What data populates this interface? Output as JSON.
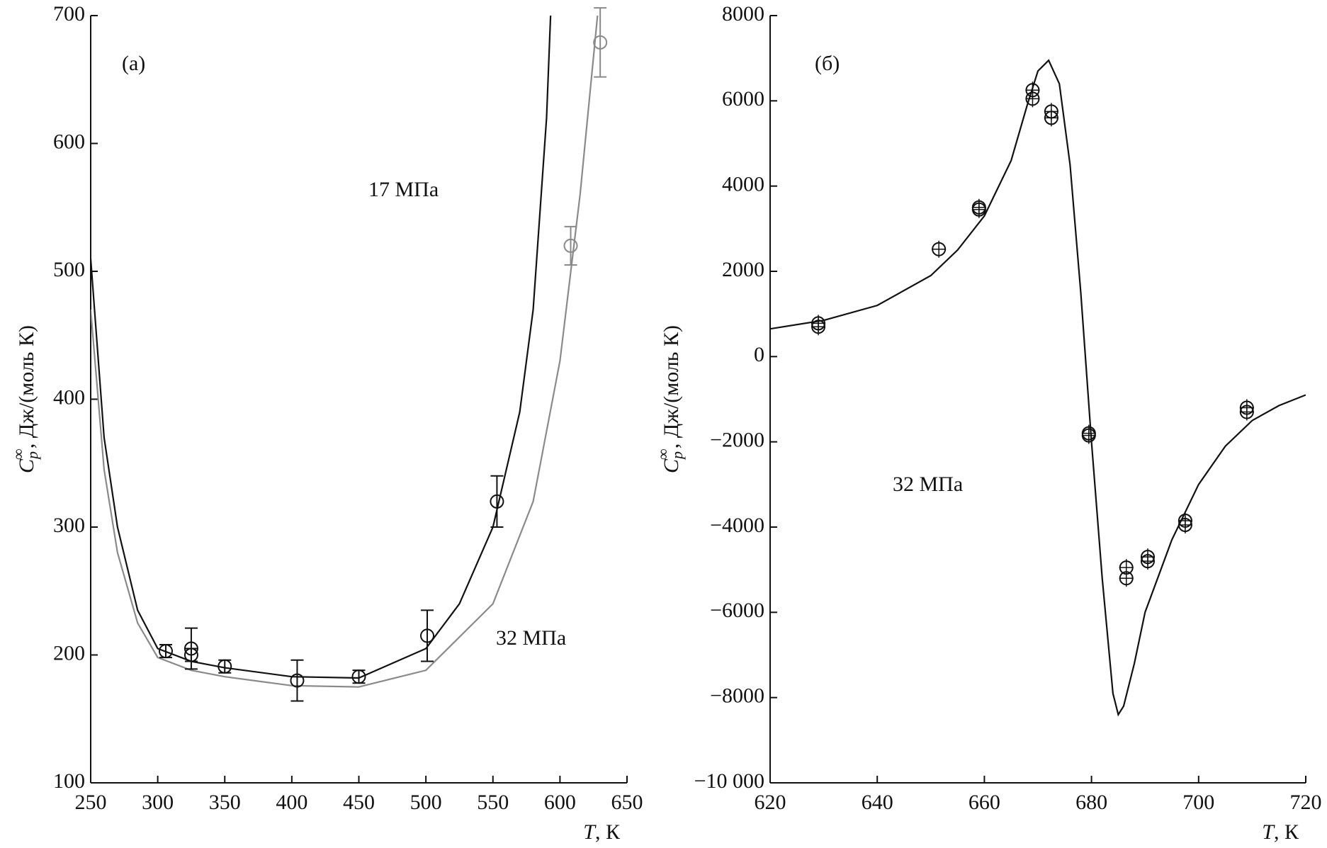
{
  "chart_data": [
    {
      "type": "line",
      "panel": "(а)",
      "xlabel": {
        "symbol": "T",
        "rest": ", К"
      },
      "ylabel": {
        "symbol": "C",
        "sub": "p",
        "sup": "∞",
        "rest": ", Дж/(моль К)"
      },
      "xlim": [
        250,
        650
      ],
      "ylim": [
        100,
        700
      ],
      "xticks": [
        250,
        300,
        350,
        400,
        450,
        500,
        550,
        600,
        650
      ],
      "yticks": [
        100,
        200,
        300,
        400,
        500,
        600,
        700
      ],
      "annotations": [
        "17 МПа",
        "32 МПа"
      ],
      "series": [
        {
          "style": "line",
          "color": "#111111",
          "x": [
            250,
            260,
            270,
            285,
            300,
            325,
            350,
            400,
            450,
            500,
            525,
            550,
            570,
            580,
            590,
            593
          ],
          "values": [
            510,
            370,
            300,
            235,
            205,
            195,
            190,
            183,
            182,
            205,
            240,
            300,
            390,
            470,
            620,
            700
          ]
        },
        {
          "style": "line",
          "color": "#8a8a8a",
          "x": [
            250,
            260,
            270,
            285,
            300,
            325,
            350,
            400,
            450,
            500,
            550,
            580,
            600,
            615,
            628
          ],
          "values": [
            470,
            345,
            280,
            225,
            198,
            188,
            183,
            176,
            175,
            188,
            240,
            320,
            430,
            560,
            700
          ]
        },
        {
          "style": "points",
          "color": "#111111",
          "x": [
            306,
            325,
            325,
            350,
            404,
            450,
            501,
            553
          ],
          "values": [
            203,
            205,
            200,
            191,
            180,
            183,
            215,
            320
          ],
          "errors": [
            5,
            16,
            5,
            5,
            16,
            5,
            20,
            20
          ]
        },
        {
          "style": "points",
          "color": "#8a8a8a",
          "x": [
            608,
            630
          ],
          "values": [
            520,
            679
          ],
          "errors": [
            15,
            27
          ]
        }
      ]
    },
    {
      "type": "line",
      "panel": "(б)",
      "xlabel": {
        "symbol": "T",
        "rest": ", К"
      },
      "ylabel": {
        "symbol": "C",
        "sub": "p",
        "sup": "∞",
        "rest": ", Дж/(моль К)"
      },
      "xlim": [
        620,
        720
      ],
      "ylim": [
        -10000,
        8000
      ],
      "xticks": [
        620,
        640,
        660,
        680,
        700,
        720
      ],
      "yticks": [
        {
          "value": -10000,
          "label": "−10 000"
        },
        {
          "value": -8000,
          "label": "−8000"
        },
        {
          "value": -6000,
          "label": "−6000"
        },
        {
          "value": -4000,
          "label": "−4000"
        },
        {
          "value": -2000,
          "label": "−2000"
        },
        0,
        2000,
        4000,
        6000,
        8000
      ],
      "annotations": [
        "32 МПа"
      ],
      "series": [
        {
          "style": "line",
          "color": "#111111",
          "x": [
            620,
            630,
            640,
            650,
            655,
            660,
            665,
            668,
            670,
            672,
            674,
            676,
            678,
            680,
            682,
            684,
            685,
            686,
            688,
            690,
            695,
            700,
            705,
            710,
            715,
            720
          ],
          "values": [
            650,
            850,
            1200,
            1900,
            2500,
            3300,
            4600,
            5900,
            6700,
            6950,
            6400,
            4500,
            1500,
            -2000,
            -5200,
            -7900,
            -8400,
            -8200,
            -7200,
            -6000,
            -4300,
            -3000,
            -2100,
            -1500,
            -1150,
            -900
          ]
        },
        {
          "style": "points",
          "color": "#111111",
          "x": [
            629,
            629,
            651.5,
            659,
            659,
            669,
            669,
            672.5,
            672.5,
            679.5,
            679.5,
            686.5,
            686.5,
            690.5,
            690.5,
            697.5,
            697.5,
            709,
            709
          ],
          "values": [
            780,
            700,
            2520,
            3500,
            3450,
            6250,
            6050,
            5750,
            5600,
            -1800,
            -1850,
            -4950,
            -5200,
            -4700,
            -4800,
            -3850,
            -3950,
            -1200,
            -1300
          ]
        }
      ]
    }
  ]
}
